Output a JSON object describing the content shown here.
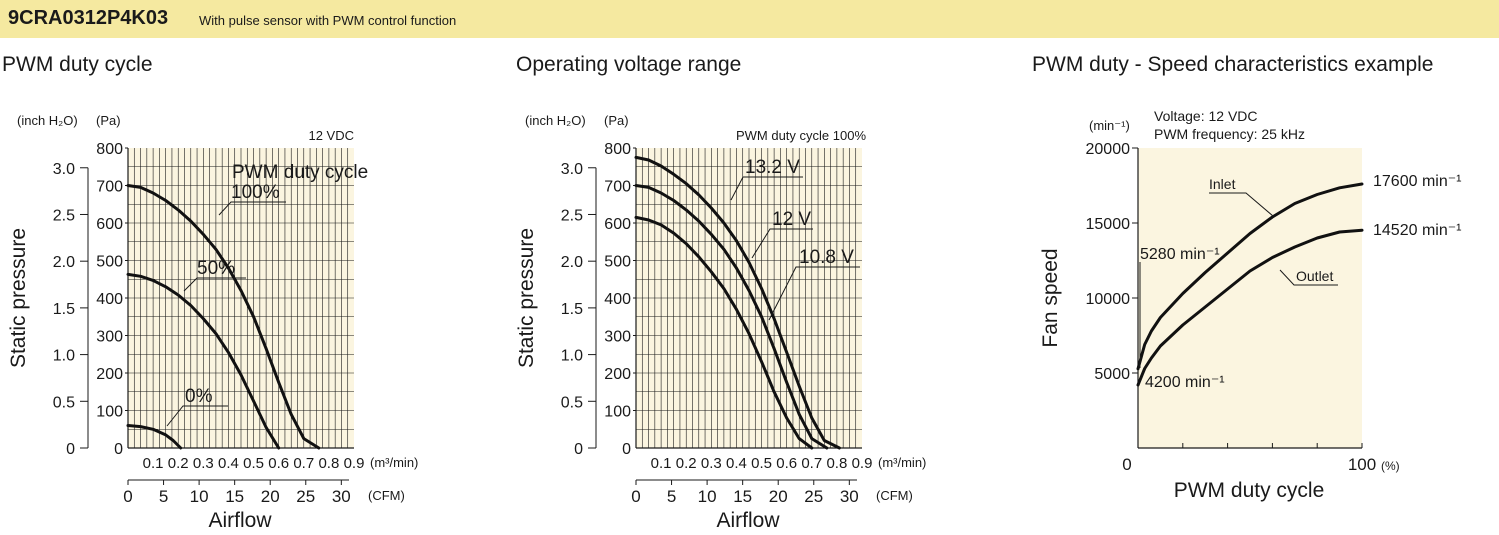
{
  "header": {
    "model": "9CRA0312P4K03",
    "description": "With pulse sensor with PWM control function"
  },
  "chart_data": [
    {
      "type": "line",
      "title": "PWM duty cycle",
      "condition": "12 VDC",
      "xlabel": "Airflow",
      "ylabel": "Static pressure",
      "y_units": [
        "(inch H₂O)",
        "(Pa)"
      ],
      "x_units": [
        "(m³/min)",
        "(CFM)"
      ],
      "pa_ticks": [
        "0",
        "100",
        "200",
        "300",
        "400",
        "500",
        "600",
        "700",
        "800"
      ],
      "inh2o_ticks": [
        "0",
        "0.5",
        "1.0",
        "1.5",
        "2.0",
        "2.5",
        "3.0"
      ],
      "m3_ticks": [
        "0.1",
        "0.2",
        "0.3",
        "0.4",
        "0.5",
        "0.6",
        "0.7",
        "0.8",
        "0.9"
      ],
      "cfm_ticks": [
        "0",
        "5",
        "10",
        "15",
        "20",
        "25",
        "30"
      ],
      "xlim": [
        0,
        0.9
      ],
      "ylim": [
        0,
        800
      ],
      "series_header": "PWM duty cycle",
      "series": [
        {
          "name": "100%",
          "points": [
            [
              0,
              700
            ],
            [
              0.05,
              695
            ],
            [
              0.1,
              680
            ],
            [
              0.15,
              660
            ],
            [
              0.2,
              635
            ],
            [
              0.25,
              605
            ],
            [
              0.3,
              570
            ],
            [
              0.35,
              530
            ],
            [
              0.4,
              480
            ],
            [
              0.45,
              420
            ],
            [
              0.5,
              350
            ],
            [
              0.55,
              265
            ],
            [
              0.6,
              175
            ],
            [
              0.65,
              90
            ],
            [
              0.7,
              25
            ],
            [
              0.76,
              0
            ]
          ]
        },
        {
          "name": "50%",
          "points": [
            [
              0,
              463
            ],
            [
              0.05,
              458
            ],
            [
              0.1,
              447
            ],
            [
              0.15,
              430
            ],
            [
              0.2,
              408
            ],
            [
              0.25,
              380
            ],
            [
              0.3,
              345
            ],
            [
              0.35,
              305
            ],
            [
              0.4,
              255
            ],
            [
              0.45,
              195
            ],
            [
              0.5,
              125
            ],
            [
              0.55,
              55
            ],
            [
              0.6,
              0
            ]
          ]
        },
        {
          "name": "0%",
          "points": [
            [
              0,
              60
            ],
            [
              0.05,
              57
            ],
            [
              0.1,
              50
            ],
            [
              0.15,
              35
            ],
            [
              0.18,
              20
            ],
            [
              0.21,
              0
            ]
          ]
        }
      ]
    },
    {
      "type": "line",
      "title": "Operating voltage range",
      "condition": "PWM duty cycle 100%",
      "xlabel": "Airflow",
      "ylabel": "Static pressure",
      "y_units": [
        "(inch H₂O)",
        "(Pa)"
      ],
      "x_units": [
        "(m³/min)",
        "(CFM)"
      ],
      "pa_ticks": [
        "0",
        "100",
        "200",
        "300",
        "400",
        "500",
        "600",
        "700",
        "800"
      ],
      "inh2o_ticks": [
        "0",
        "0.5",
        "1.0",
        "1.5",
        "2.0",
        "2.5",
        "3.0"
      ],
      "m3_ticks": [
        "0.1",
        "0.2",
        "0.3",
        "0.4",
        "0.5",
        "0.6",
        "0.7",
        "0.8",
        "0.9"
      ],
      "cfm_ticks": [
        "0",
        "5",
        "10",
        "15",
        "20",
        "25",
        "30"
      ],
      "xlim": [
        0,
        0.9
      ],
      "ylim": [
        0,
        800
      ],
      "series": [
        {
          "name": "13.2 V",
          "points": [
            [
              0,
              775
            ],
            [
              0.05,
              768
            ],
            [
              0.1,
              752
            ],
            [
              0.15,
              730
            ],
            [
              0.2,
              705
            ],
            [
              0.25,
              675
            ],
            [
              0.3,
              640
            ],
            [
              0.35,
              600
            ],
            [
              0.4,
              553
            ],
            [
              0.45,
              495
            ],
            [
              0.5,
              425
            ],
            [
              0.55,
              345
            ],
            [
              0.6,
              255
            ],
            [
              0.65,
              165
            ],
            [
              0.7,
              80
            ],
            [
              0.75,
              20
            ],
            [
              0.81,
              0
            ]
          ]
        },
        {
          "name": "12 V",
          "points": [
            [
              0,
              700
            ],
            [
              0.05,
              695
            ],
            [
              0.1,
              680
            ],
            [
              0.15,
              660
            ],
            [
              0.2,
              635
            ],
            [
              0.25,
              605
            ],
            [
              0.3,
              570
            ],
            [
              0.35,
              530
            ],
            [
              0.4,
              480
            ],
            [
              0.45,
              420
            ],
            [
              0.5,
              350
            ],
            [
              0.55,
              265
            ],
            [
              0.6,
              175
            ],
            [
              0.65,
              90
            ],
            [
              0.7,
              25
            ],
            [
              0.76,
              0
            ]
          ]
        },
        {
          "name": "10.8 V",
          "points": [
            [
              0,
              615
            ],
            [
              0.05,
              608
            ],
            [
              0.1,
              595
            ],
            [
              0.15,
              573
            ],
            [
              0.2,
              545
            ],
            [
              0.25,
              510
            ],
            [
              0.3,
              470
            ],
            [
              0.35,
              425
            ],
            [
              0.4,
              370
            ],
            [
              0.45,
              305
            ],
            [
              0.5,
              230
            ],
            [
              0.55,
              150
            ],
            [
              0.6,
              80
            ],
            [
              0.65,
              25
            ],
            [
              0.7,
              0
            ]
          ]
        }
      ]
    },
    {
      "type": "line",
      "title": "PWM duty - Speed characteristics example",
      "conditions": [
        "Voltage: 12 VDC",
        "PWM frequency: 25 kHz"
      ],
      "xlabel": "PWM duty cycle",
      "ylabel": "Fan speed",
      "y_unit": "(min⁻¹)",
      "x_unit": "(%)",
      "y_ticks": [
        "5000",
        "10000",
        "15000",
        "20000"
      ],
      "x_ticks": [
        "0",
        "100"
      ],
      "xlim": [
        0,
        100
      ],
      "ylim": [
        0,
        20000
      ],
      "series": [
        {
          "name": "Inlet",
          "points": [
            [
              0,
              5280
            ],
            [
              3,
              6900
            ],
            [
              6,
              7800
            ],
            [
              10,
              8700
            ],
            [
              20,
              10300
            ],
            [
              30,
              11700
            ],
            [
              40,
              13000
            ],
            [
              50,
              14300
            ],
            [
              60,
              15400
            ],
            [
              70,
              16300
            ],
            [
              80,
              16900
            ],
            [
              90,
              17350
            ],
            [
              100,
              17600
            ]
          ]
        },
        {
          "name": "Outlet",
          "points": [
            [
              0,
              4200
            ],
            [
              3,
              5300
            ],
            [
              6,
              6000
            ],
            [
              10,
              6800
            ],
            [
              20,
              8200
            ],
            [
              30,
              9400
            ],
            [
              40,
              10600
            ],
            [
              50,
              11800
            ],
            [
              60,
              12700
            ],
            [
              70,
              13400
            ],
            [
              80,
              14000
            ],
            [
              90,
              14400
            ],
            [
              100,
              14520
            ]
          ]
        }
      ],
      "annotations": [
        "5280 min⁻¹",
        "4200 min⁻¹",
        "17600 min⁻¹",
        "14520 min⁻¹"
      ]
    }
  ]
}
